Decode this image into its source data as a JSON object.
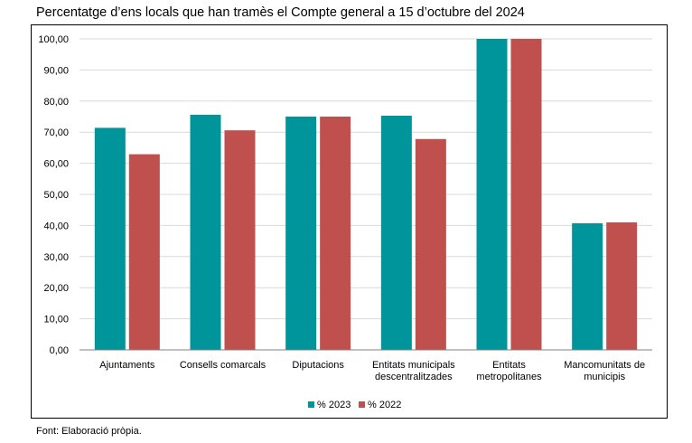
{
  "title": "Percentatge d’ens locals que han tramès el Compte general a 15 d’octubre del 2024",
  "source": "Font: Elaboració pròpia.",
  "colors": {
    "series_2023": "#00959A",
    "series_2022": "#C0504D",
    "gridline": "#D9D9D9",
    "axis": "#808080"
  },
  "chart_data": {
    "type": "bar",
    "title": "Percentatge d’ens locals que han tramès el Compte general a 15 d’octubre del 2024",
    "xlabel": "",
    "ylabel": "",
    "ylim": [
      0,
      100
    ],
    "yticks": [
      "0,00",
      "10,00",
      "20,00",
      "30,00",
      "40,00",
      "50,00",
      "60,00",
      "70,00",
      "80,00",
      "90,00",
      "100,00"
    ],
    "categories": [
      [
        "Ajuntaments"
      ],
      [
        "Consells comarcals"
      ],
      [
        "Diputacions"
      ],
      [
        "Entitats municipals",
        "descentralitzades"
      ],
      [
        "Entitats",
        "metropolitanes"
      ],
      [
        "Mancomunitats de",
        "municipis"
      ]
    ],
    "series": [
      {
        "name": "% 2023",
        "values": [
          71.4,
          75.6,
          75.0,
          75.3,
          100.0,
          40.7
        ]
      },
      {
        "name": "% 2022",
        "values": [
          62.9,
          70.6,
          75.0,
          67.8,
          100.0,
          41.0
        ]
      }
    ],
    "grid": true,
    "legend_position": "bottom"
  }
}
